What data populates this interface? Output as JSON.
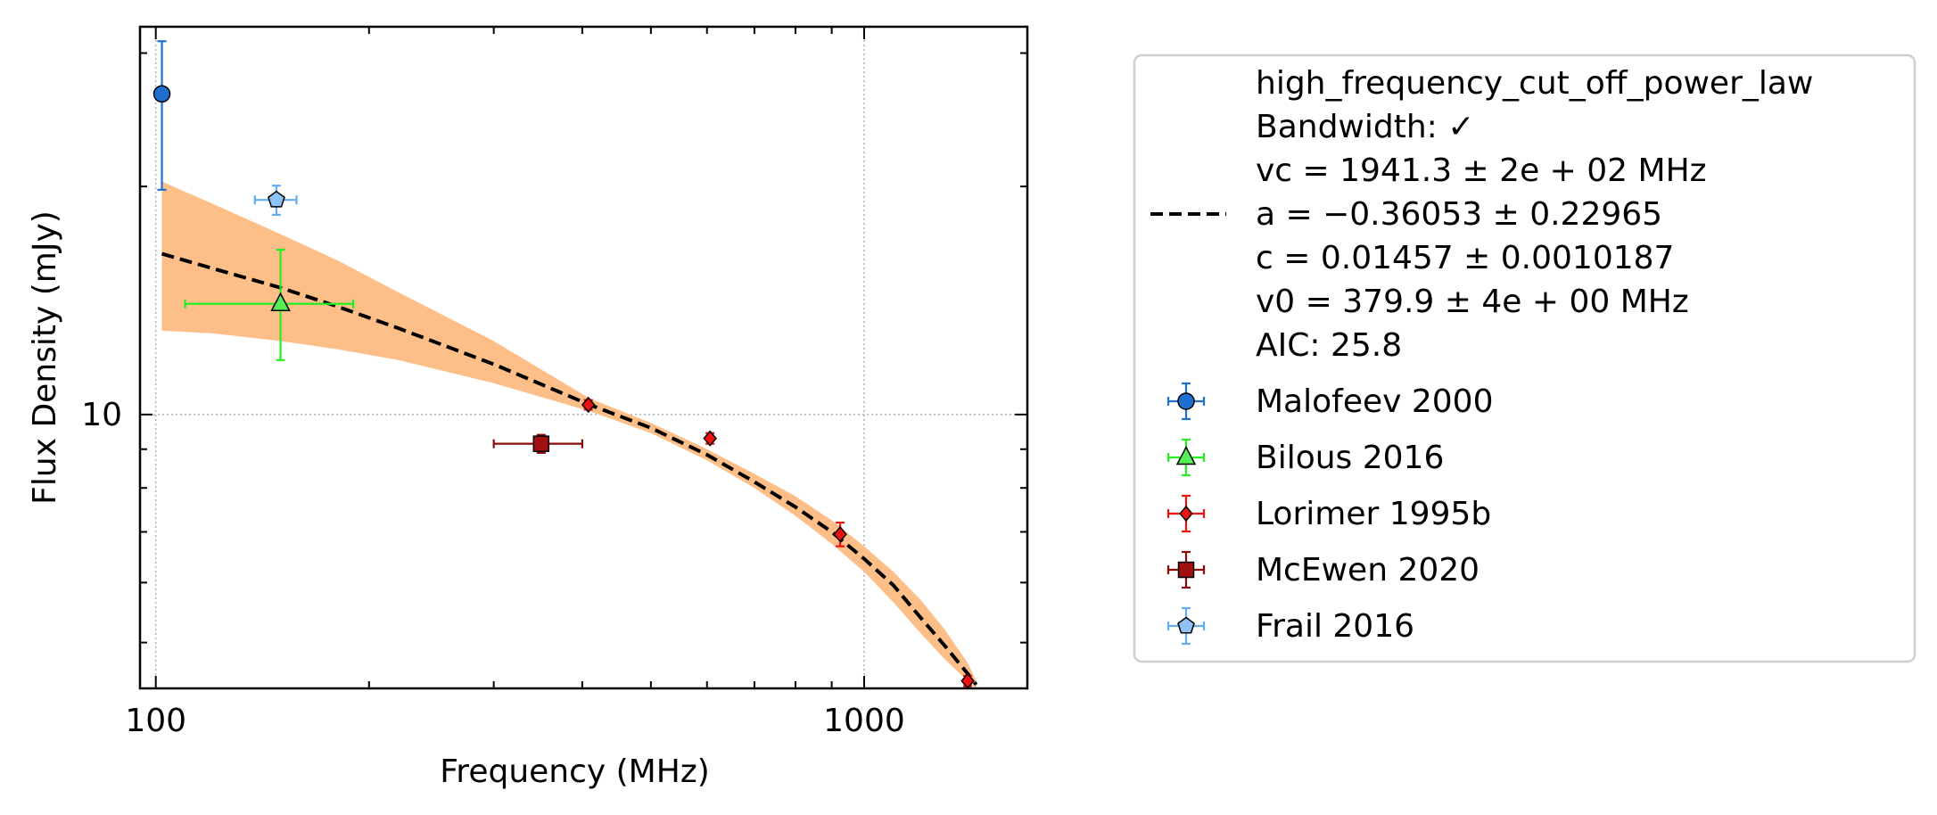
{
  "chart_data": {
    "type": "scatter",
    "xlabel": "Frequency (MHz)",
    "ylabel": "Flux Density (mJy)",
    "x_scale": "log",
    "y_scale": "log",
    "xlim": [
      95,
      1700
    ],
    "ylim": [
      4.35,
      32.5
    ],
    "x_ticks": [
      100,
      1000
    ],
    "x_tick_labels": [
      "100",
      "1000"
    ],
    "y_ticks": [
      10
    ],
    "y_tick_labels": [
      "10"
    ],
    "grid": "major, dotted",
    "legend_position": "outside right",
    "fit": {
      "model": "high_frequency_cut_off_power_law",
      "label_lines": [
        "high_frequency_cut_off_power_law",
        "Bandwidth: ✓",
        "vc = 1941.3 ± 2e + 02 MHz",
        "a = −0.36053 ± 0.22965",
        "c = 0.01457 ± 0.0010187",
        "v0 = 379.9 ± 4e + 00 MHz",
        "AIC: 25.8"
      ],
      "line_color": "#000000",
      "band_color": "#fdbf87",
      "x": [
        102,
        120,
        150,
        180,
        220,
        300,
        410,
        500,
        600,
        700,
        800,
        900,
        1000,
        1100,
        1200,
        1300,
        1400,
        1440
      ],
      "y": [
        16.3,
        15.6,
        14.7,
        13.9,
        13.0,
        11.65,
        10.3,
        9.6,
        8.85,
        8.15,
        7.55,
        7.0,
        6.45,
        5.95,
        5.4,
        4.95,
        4.55,
        4.4
      ],
      "y_low": [
        12.9,
        12.8,
        12.5,
        12.2,
        11.8,
        11.0,
        10.1,
        9.45,
        8.7,
        8.0,
        7.35,
        6.75,
        6.2,
        5.65,
        5.15,
        4.75,
        4.45,
        4.35
      ],
      "y_high": [
        20.3,
        19.0,
        17.3,
        16.0,
        14.5,
        12.5,
        10.5,
        9.75,
        9.0,
        8.35,
        7.8,
        7.25,
        6.7,
        6.2,
        5.7,
        5.2,
        4.7,
        4.45
      ]
    },
    "series": [
      {
        "name": "Malofeev 2000",
        "marker": "circle",
        "color": "#1f6fd1",
        "fill": "#1f6fd1",
        "points": [
          {
            "x": 102,
            "y": 26.5,
            "yerr_low": 6.7,
            "yerr_high": 4.6
          }
        ]
      },
      {
        "name": "Bilous 2016",
        "marker": "triangle",
        "color": "#22ee22",
        "fill": "#55ee55",
        "points": [
          {
            "x": 150,
            "y": 14.0,
            "xerr_low": 40,
            "xerr_high": 40,
            "yerr_low": 2.2,
            "yerr_high": 2.5
          }
        ]
      },
      {
        "name": "Lorimer 1995b",
        "marker": "diamond",
        "color": "#ee1111",
        "fill": "#ee1111",
        "points": [
          {
            "x": 408,
            "y": 10.3,
            "yerr_low": 0.15,
            "yerr_high": 0.15
          },
          {
            "x": 606,
            "y": 9.3,
            "yerr_low": 0.15,
            "yerr_high": 0.15
          },
          {
            "x": 925,
            "y": 6.95,
            "yerr_low": 0.25,
            "yerr_high": 0.25
          },
          {
            "x": 1400,
            "y": 4.45,
            "yerr_low": 0.07,
            "yerr_high": 0.07
          }
        ]
      },
      {
        "name": "McEwen 2020",
        "marker": "square",
        "color": "#8b0a0a",
        "fill": "#a31010",
        "points": [
          {
            "x": 350,
            "y": 9.15,
            "xerr_low": 50,
            "xerr_high": 50,
            "yerr_low": 0.25,
            "yerr_high": 0.25
          }
        ]
      },
      {
        "name": "Frail 2016",
        "marker": "pentagon",
        "color": "#62aef0",
        "fill": "#8cc2f5",
        "points": [
          {
            "x": 148,
            "y": 19.2,
            "xerr_low": 10,
            "xerr_high": 10,
            "yerr_low": 0.85,
            "yerr_high": 0.85
          }
        ]
      }
    ]
  }
}
